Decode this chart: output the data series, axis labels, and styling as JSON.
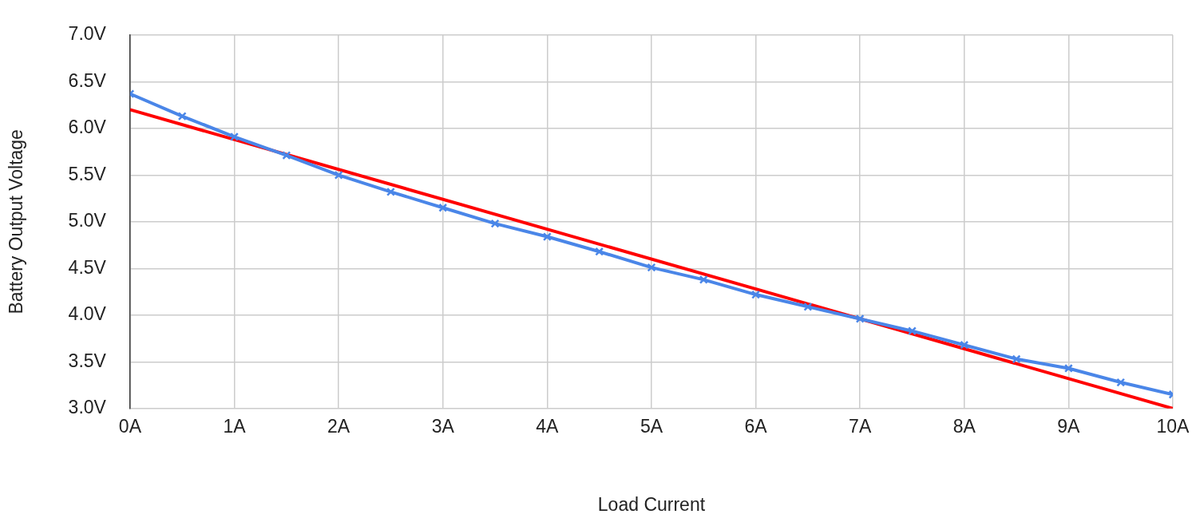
{
  "chart_data": {
    "type": "line",
    "xlabel": "Load Current",
    "ylabel": "Battery Output Voltage",
    "xlim": [
      0,
      10
    ],
    "ylim": [
      3.0,
      7.0
    ],
    "xticks": [
      {
        "value": 0,
        "label": "0A"
      },
      {
        "value": 1,
        "label": "1A"
      },
      {
        "value": 2,
        "label": "2A"
      },
      {
        "value": 3,
        "label": "3A"
      },
      {
        "value": 4,
        "label": "4A"
      },
      {
        "value": 5,
        "label": "5A"
      },
      {
        "value": 6,
        "label": "6A"
      },
      {
        "value": 7,
        "label": "7A"
      },
      {
        "value": 8,
        "label": "8A"
      },
      {
        "value": 9,
        "label": "9A"
      },
      {
        "value": 10,
        "label": "10A"
      }
    ],
    "yticks": [
      {
        "value": 3.0,
        "label": "3.0V"
      },
      {
        "value": 3.5,
        "label": "3.5V"
      },
      {
        "value": 4.0,
        "label": "4.0V"
      },
      {
        "value": 4.5,
        "label": "4.5V"
      },
      {
        "value": 5.0,
        "label": "5.0V"
      },
      {
        "value": 5.5,
        "label": "5.5V"
      },
      {
        "value": 6.0,
        "label": "6.0V"
      },
      {
        "value": 6.5,
        "label": "6.5V"
      },
      {
        "value": 7.0,
        "label": "7.0V"
      }
    ],
    "grid": true,
    "legend": false,
    "series": [
      {
        "type": "line",
        "color": "#4a86e8",
        "marker": "cross",
        "x": [
          0,
          0.5,
          1,
          1.5,
          2,
          2.5,
          3,
          3.5,
          4,
          4.5,
          5,
          5.5,
          6,
          6.5,
          7,
          7.5,
          8,
          8.5,
          9,
          9.5,
          10
        ],
        "values": [
          6.37,
          6.13,
          5.91,
          5.71,
          5.5,
          5.32,
          5.15,
          4.98,
          4.84,
          4.68,
          4.51,
          4.38,
          4.22,
          4.09,
          3.96,
          3.83,
          3.68,
          3.53,
          3.43,
          3.28,
          3.15
        ]
      },
      {
        "type": "line",
        "color": "#ff0000",
        "marker": "none",
        "x": [
          0,
          10
        ],
        "values": [
          6.2,
          3.0
        ]
      }
    ]
  }
}
